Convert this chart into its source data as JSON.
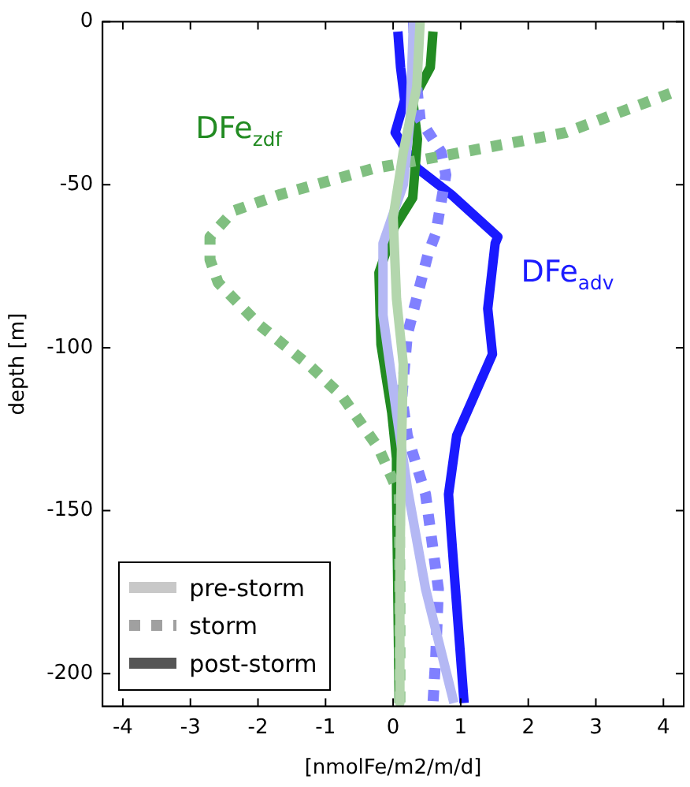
{
  "chart_data": {
    "type": "line",
    "xlabel": "[nmolFe/m2/m/d]",
    "ylabel": "depth [m]",
    "xlim": [
      -4.3,
      4.3
    ],
    "xticks": [
      -4,
      -3,
      -2,
      -1,
      0,
      1,
      2,
      3,
      4
    ],
    "ylim": [
      -210,
      0
    ],
    "yticks": [
      -200,
      -150,
      -100,
      -50,
      0
    ],
    "grid": false,
    "marker": "none",
    "annotations": [
      "DFe$_{zdf}$",
      "DFe$_{adv}$",
      "pre-storm",
      "storm",
      "post-storm"
    ],
    "series": [
      {
        "color": "#b3d6ad",
        "line_style": "solid",
        "x": [
          0.4,
          0.35,
          0.15,
          0.0,
          0.05,
          0.15,
          0.12,
          0.1,
          0.1
        ],
        "values": [
          0,
          -20,
          -40,
          -60,
          -85,
          -105,
          -135,
          -170,
          -209
        ]
      },
      {
        "color": "#b4b8f4",
        "line_style": "solid",
        "x": [
          0.3,
          0.25,
          0.15,
          -0.15,
          -0.15,
          0.05,
          0.21,
          0.48,
          0.9
        ],
        "values": [
          0,
          -30,
          -50,
          -68,
          -90,
          -120,
          -143,
          -174,
          -209
        ]
      },
      {
        "color": "#80bf80",
        "line_style": "dotted",
        "x": [
          4.1,
          2.55,
          0.78,
          -0.29,
          -1.67,
          -2.36,
          -2.71,
          -2.71,
          -2.59,
          -1.98,
          -1.21,
          -0.75,
          -0.21,
          0.09,
          0.1,
          0.1
        ],
        "values": [
          -22,
          -34,
          -41,
          -45,
          -53,
          -58,
          -66,
          -73,
          -80,
          -93,
          -106,
          -115,
          -131,
          -145,
          -175,
          -209
        ]
      },
      {
        "color": "#8080ff",
        "line_style": "dotted",
        "x": [
          0.3,
          0.35,
          0.4,
          0.71,
          0.78,
          0.63,
          0.52,
          0.21,
          0.13,
          0.21,
          0.48,
          0.67,
          0.63,
          0.59
        ],
        "values": [
          0,
          -20,
          -30,
          -40,
          -47,
          -65,
          -71,
          -96,
          -115,
          -127,
          -145,
          -174,
          -195,
          -209
        ]
      },
      {
        "color": "#228b22",
        "line_style": "solid",
        "x": [
          0.59,
          0.55,
          0.29,
          0.36,
          0.29,
          0.02,
          -0.21,
          -0.18,
          -0.02,
          0.05,
          0.05,
          0.09
        ],
        "values": [
          -3,
          -14,
          -24,
          -36,
          -54,
          -63,
          -77,
          -99,
          -120,
          -134,
          -143,
          -209
        ]
      },
      {
        "color": "#1a1aff",
        "line_style": "solid",
        "x": [
          0.07,
          0.11,
          0.17,
          0.03,
          0.36,
          0.86,
          1.55,
          1.51,
          1.4,
          1.47,
          0.94,
          0.82,
          0.86,
          1.05
        ],
        "values": [
          -3,
          -14,
          -24,
          -34,
          -45,
          -53,
          -66,
          -68,
          -88,
          -102,
          -127,
          -145,
          -157,
          -209
        ]
      }
    ]
  }
}
